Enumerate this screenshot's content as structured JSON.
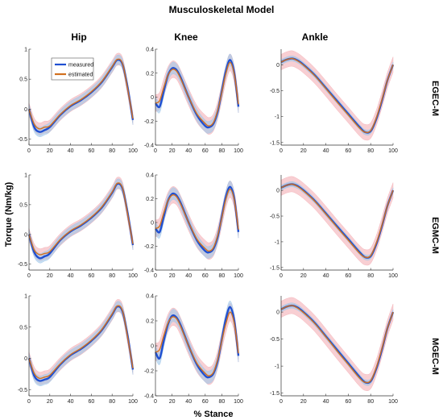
{
  "figure_title": "Musculoskeletal Model",
  "column_titles": [
    "Hip",
    "Knee",
    "Ankle"
  ],
  "row_labels": [
    "EGEC-M",
    "EGMC-M",
    "MGEC-M"
  ],
  "ylabel": "Torque (Nm/kg)",
  "xlabel": "% Stance",
  "legend": {
    "placement": "top-left of first panel",
    "entries": [
      "measured",
      "estimated"
    ]
  },
  "colors": {
    "measured": "#1f4fd1",
    "estimated": "#d2701f",
    "band_measured": "#9ec6ea",
    "band_estimated": "#f2a8ae"
  },
  "chart_data": [
    {
      "type": "line",
      "row": 0,
      "col": 0,
      "xlim": [
        0,
        100
      ],
      "ylim": [
        -0.6,
        1.0
      ],
      "xticks": [
        0,
        20,
        40,
        60,
        80,
        100
      ],
      "yticks": [
        -0.5,
        0,
        0.5,
        1
      ],
      "ytick_labels": [
        "-0.5",
        "0",
        "0.5",
        "1"
      ],
      "x": [
        0,
        5,
        10,
        15,
        20,
        30,
        40,
        50,
        60,
        70,
        80,
        85,
        90,
        95,
        100
      ],
      "series": [
        {
          "values": [
            0.0,
            -0.3,
            -0.38,
            -0.35,
            -0.3,
            -0.1,
            0.05,
            0.15,
            0.28,
            0.45,
            0.7,
            0.82,
            0.75,
            0.35,
            -0.18
          ],
          "band": 0.08
        },
        {
          "values": [
            0.0,
            -0.25,
            -0.33,
            -0.3,
            -0.28,
            -0.09,
            0.06,
            0.16,
            0.29,
            0.46,
            0.71,
            0.83,
            0.76,
            0.33,
            -0.16
          ],
          "band": 0.1
        }
      ]
    },
    {
      "type": "line",
      "row": 0,
      "col": 1,
      "xlim": [
        0,
        100
      ],
      "ylim": [
        -0.4,
        0.4
      ],
      "xticks": [
        0,
        20,
        40,
        60,
        80,
        100
      ],
      "yticks": [
        -0.4,
        -0.2,
        0,
        0.2,
        0.4
      ],
      "ytick_labels": [
        "-0.4",
        "-0.2",
        "0",
        "0.2",
        "0.4"
      ],
      "x": [
        0,
        5,
        10,
        15,
        20,
        25,
        30,
        40,
        50,
        60,
        65,
        70,
        75,
        80,
        85,
        90,
        95,
        100
      ],
      "series": [
        {
          "values": [
            -0.05,
            -0.08,
            0.05,
            0.18,
            0.24,
            0.23,
            0.17,
            0.0,
            -0.15,
            -0.24,
            -0.25,
            -0.22,
            -0.12,
            0.05,
            0.22,
            0.31,
            0.2,
            -0.08
          ],
          "band": 0.05
        },
        {
          "values": [
            -0.05,
            -0.03,
            0.08,
            0.18,
            0.23,
            0.22,
            0.16,
            0.0,
            -0.14,
            -0.22,
            -0.24,
            -0.21,
            -0.11,
            0.04,
            0.2,
            0.29,
            0.19,
            -0.06
          ],
          "band": 0.07
        }
      ]
    },
    {
      "type": "line",
      "row": 0,
      "col": 2,
      "xlim": [
        0,
        100
      ],
      "ylim": [
        -1.55,
        0.3
      ],
      "xticks": [
        0,
        20,
        40,
        60,
        80,
        100
      ],
      "yticks": [
        -1.5,
        -1,
        -0.5,
        0
      ],
      "ytick_labels": [
        "-1.5",
        "-1",
        "-0.5",
        "0"
      ],
      "x": [
        0,
        5,
        10,
        15,
        20,
        30,
        40,
        50,
        60,
        70,
        75,
        80,
        85,
        90,
        95,
        100
      ],
      "series": [
        {
          "values": [
            0.05,
            0.1,
            0.12,
            0.08,
            0.0,
            -0.2,
            -0.45,
            -0.7,
            -0.95,
            -1.2,
            -1.3,
            -1.28,
            -1.05,
            -0.7,
            -0.3,
            0.0
          ],
          "band": 0.05
        },
        {
          "values": [
            0.05,
            0.1,
            0.12,
            0.07,
            -0.01,
            -0.21,
            -0.46,
            -0.72,
            -0.97,
            -1.22,
            -1.3,
            -1.27,
            -1.03,
            -0.68,
            -0.3,
            0.0
          ],
          "band": 0.15
        }
      ]
    },
    {
      "type": "line",
      "row": 1,
      "col": 0,
      "xlim": [
        0,
        100
      ],
      "ylim": [
        -0.6,
        1.0
      ],
      "xticks": [
        0,
        20,
        40,
        60,
        80,
        100
      ],
      "yticks": [
        -0.5,
        0,
        0.5,
        1
      ],
      "ytick_labels": [
        "-0.5",
        "0",
        "0.5",
        "1"
      ],
      "x": [
        0,
        5,
        10,
        15,
        20,
        30,
        40,
        50,
        60,
        70,
        80,
        85,
        90,
        95,
        100
      ],
      "series": [
        {
          "values": [
            0.0,
            -0.3,
            -0.4,
            -0.37,
            -0.32,
            -0.1,
            0.05,
            0.15,
            0.28,
            0.45,
            0.7,
            0.85,
            0.77,
            0.35,
            -0.18
          ],
          "band": 0.08
        },
        {
          "values": [
            0.0,
            -0.26,
            -0.34,
            -0.32,
            -0.29,
            -0.09,
            0.06,
            0.16,
            0.29,
            0.46,
            0.71,
            0.86,
            0.78,
            0.33,
            -0.16
          ],
          "band": 0.1
        }
      ]
    },
    {
      "type": "line",
      "row": 1,
      "col": 1,
      "xlim": [
        0,
        100
      ],
      "ylim": [
        -0.4,
        0.4
      ],
      "xticks": [
        0,
        20,
        40,
        60,
        80,
        100
      ],
      "yticks": [
        -0.4,
        -0.2,
        0,
        0.2,
        0.4
      ],
      "ytick_labels": [
        "-0.4",
        "-0.2",
        "0",
        "0.2",
        "0.4"
      ],
      "x": [
        0,
        5,
        10,
        15,
        20,
        25,
        30,
        40,
        50,
        60,
        65,
        70,
        75,
        80,
        85,
        90,
        95,
        100
      ],
      "series": [
        {
          "values": [
            -0.05,
            -0.08,
            0.05,
            0.18,
            0.24,
            0.23,
            0.17,
            0.0,
            -0.15,
            -0.24,
            -0.25,
            -0.22,
            -0.12,
            0.05,
            0.22,
            0.3,
            0.2,
            -0.08
          ],
          "band": 0.05
        },
        {
          "values": [
            -0.05,
            -0.03,
            0.08,
            0.18,
            0.23,
            0.22,
            0.16,
            0.0,
            -0.14,
            -0.22,
            -0.24,
            -0.21,
            -0.11,
            0.04,
            0.2,
            0.28,
            0.19,
            -0.06
          ],
          "band": 0.07
        }
      ]
    },
    {
      "type": "line",
      "row": 1,
      "col": 2,
      "xlim": [
        0,
        100
      ],
      "ylim": [
        -1.55,
        0.3
      ],
      "xticks": [
        0,
        20,
        40,
        60,
        80,
        100
      ],
      "yticks": [
        -1.5,
        -1,
        -0.5,
        0
      ],
      "ytick_labels": [
        "-1.5",
        "-1",
        "-0.5",
        "0"
      ],
      "x": [
        0,
        5,
        10,
        15,
        20,
        30,
        40,
        50,
        60,
        70,
        75,
        80,
        85,
        90,
        95,
        100
      ],
      "series": [
        {
          "values": [
            0.05,
            0.1,
            0.12,
            0.08,
            0.0,
            -0.2,
            -0.45,
            -0.7,
            -0.95,
            -1.2,
            -1.3,
            -1.28,
            -1.05,
            -0.7,
            -0.3,
            0.0
          ],
          "band": 0.05
        },
        {
          "values": [
            0.05,
            0.1,
            0.12,
            0.07,
            -0.01,
            -0.21,
            -0.46,
            -0.72,
            -0.97,
            -1.22,
            -1.3,
            -1.27,
            -1.03,
            -0.68,
            -0.3,
            0.0
          ],
          "band": 0.15
        }
      ]
    },
    {
      "type": "line",
      "row": 2,
      "col": 0,
      "xlim": [
        0,
        100
      ],
      "ylim": [
        -0.6,
        1.0
      ],
      "xticks": [
        0,
        20,
        40,
        60,
        80,
        100
      ],
      "yticks": [
        -0.5,
        0,
        0.5,
        1
      ],
      "ytick_labels": [
        "-0.5",
        "0",
        "0.5",
        "1"
      ],
      "x": [
        0,
        5,
        10,
        15,
        20,
        30,
        40,
        50,
        60,
        70,
        80,
        85,
        90,
        95,
        100
      ],
      "series": [
        {
          "values": [
            0.0,
            -0.28,
            -0.36,
            -0.34,
            -0.3,
            -0.1,
            0.05,
            0.15,
            0.28,
            0.45,
            0.7,
            0.83,
            0.75,
            0.35,
            -0.18
          ],
          "band": 0.08
        },
        {
          "values": [
            0.0,
            -0.24,
            -0.32,
            -0.3,
            -0.27,
            -0.09,
            0.06,
            0.16,
            0.29,
            0.46,
            0.71,
            0.84,
            0.76,
            0.33,
            -0.16
          ],
          "band": 0.1
        }
      ]
    },
    {
      "type": "line",
      "row": 2,
      "col": 1,
      "xlim": [
        0,
        100
      ],
      "ylim": [
        -0.4,
        0.4
      ],
      "xticks": [
        0,
        20,
        40,
        60,
        80,
        100
      ],
      "yticks": [
        -0.4,
        -0.2,
        0,
        0.2,
        0.4
      ],
      "ytick_labels": [
        "-0.4",
        "-0.2",
        "0",
        "0.2",
        "0.4"
      ],
      "x": [
        0,
        5,
        10,
        15,
        20,
        25,
        30,
        40,
        50,
        60,
        65,
        70,
        75,
        80,
        85,
        90,
        95,
        100
      ],
      "series": [
        {
          "values": [
            -0.05,
            -0.1,
            0.04,
            0.17,
            0.24,
            0.23,
            0.17,
            0.0,
            -0.15,
            -0.24,
            -0.25,
            -0.22,
            -0.12,
            0.05,
            0.22,
            0.31,
            0.2,
            -0.08
          ],
          "band": 0.05
        },
        {
          "values": [
            -0.05,
            -0.03,
            0.08,
            0.18,
            0.23,
            0.22,
            0.16,
            0.0,
            -0.14,
            -0.22,
            -0.24,
            -0.21,
            -0.11,
            0.04,
            0.18,
            0.27,
            0.18,
            -0.06
          ],
          "band": 0.07
        }
      ]
    },
    {
      "type": "line",
      "row": 2,
      "col": 2,
      "xlim": [
        0,
        100
      ],
      "ylim": [
        -1.55,
        0.3
      ],
      "xticks": [
        0,
        20,
        40,
        60,
        80,
        100
      ],
      "yticks": [
        -1.5,
        -1,
        -0.5,
        0
      ],
      "ytick_labels": [
        "-1.5",
        "-1",
        "-0.5",
        "0"
      ],
      "x": [
        0,
        5,
        10,
        15,
        20,
        30,
        40,
        50,
        60,
        70,
        75,
        80,
        85,
        90,
        95,
        100
      ],
      "series": [
        {
          "values": [
            0.05,
            0.1,
            0.12,
            0.08,
            0.0,
            -0.2,
            -0.45,
            -0.7,
            -0.95,
            -1.2,
            -1.3,
            -1.28,
            -1.05,
            -0.7,
            -0.3,
            0.0
          ],
          "band": 0.05
        },
        {
          "values": [
            0.05,
            0.1,
            0.12,
            0.07,
            -0.01,
            -0.21,
            -0.46,
            -0.72,
            -0.97,
            -1.22,
            -1.3,
            -1.27,
            -1.03,
            -0.68,
            -0.3,
            0.0
          ],
          "band": 0.15
        }
      ]
    }
  ]
}
